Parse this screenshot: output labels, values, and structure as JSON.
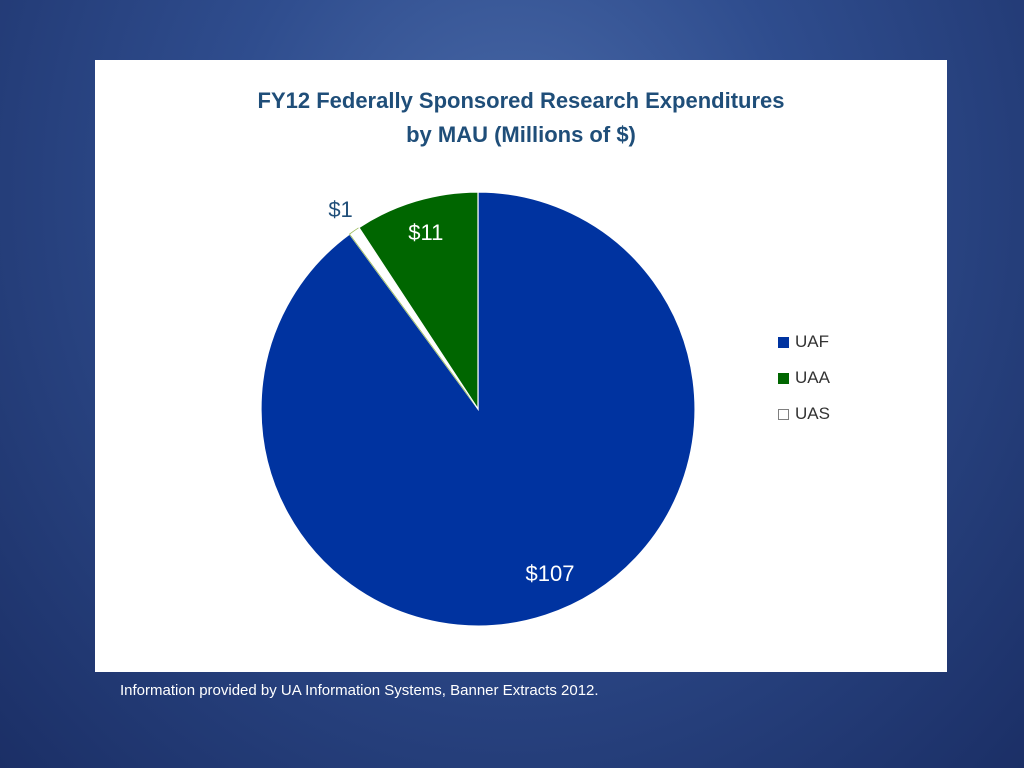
{
  "chart_data": {
    "type": "pie",
    "title_lines": [
      "FY12 Federally Sponsored Research Expenditures",
      "by MAU (Millions of $)"
    ],
    "slices": [
      {
        "name": "UAF",
        "value": 107,
        "label": "$107",
        "color": "#0033a0"
      },
      {
        "name": "UAS",
        "value": 1,
        "label": "$1",
        "color": "#ffffff"
      },
      {
        "name": "UAA",
        "value": 11,
        "label": "$11",
        "color": "#006600"
      }
    ],
    "legend": [
      {
        "label": "UAF",
        "color": "#0033a0"
      },
      {
        "label": "UAA",
        "color": "#006600"
      },
      {
        "label": "UAS",
        "color": "#ffffff"
      }
    ],
    "legend_position": "right"
  },
  "footer": "Information provided by UA Information Systems, Banner Extracts 2012."
}
